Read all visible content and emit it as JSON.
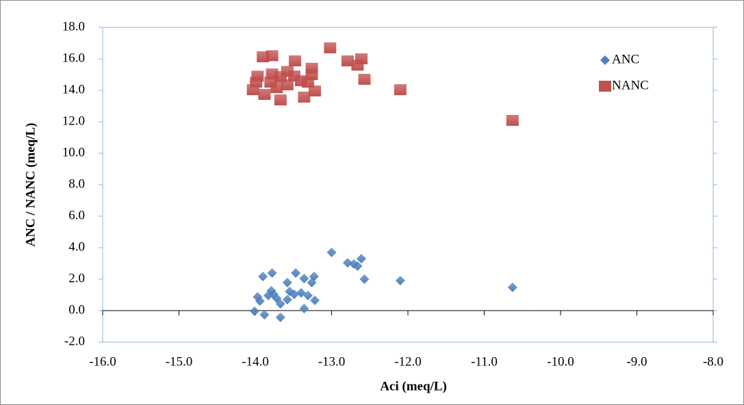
{
  "chart_data": {
    "type": "scatter",
    "xlabel": "Aci (meq/L)",
    "ylabel": "ANC / NANC (meq/L)",
    "xlim": [
      -16,
      -8
    ],
    "ylim": [
      -2,
      18
    ],
    "xticks": [
      {
        "value": -16,
        "label": "-16.0"
      },
      {
        "value": -15,
        "label": "-15.0"
      },
      {
        "value": -14,
        "label": "-14.0"
      },
      {
        "value": -13,
        "label": "-13.0"
      },
      {
        "value": -12,
        "label": "-12.0"
      },
      {
        "value": -11,
        "label": "-11.0"
      },
      {
        "value": -10,
        "label": "-10.0"
      },
      {
        "value": -9,
        "label": "-9.0"
      },
      {
        "value": -8,
        "label": "-8.0"
      }
    ],
    "yticks": [
      {
        "value": -2,
        "label": "-2.0"
      },
      {
        "value": 0,
        "label": "0.0"
      },
      {
        "value": 2,
        "label": "2.0"
      },
      {
        "value": 4,
        "label": "4.0"
      },
      {
        "value": 6,
        "label": "6.0"
      },
      {
        "value": 8,
        "label": "8.0"
      },
      {
        "value": 10,
        "label": "10.0"
      },
      {
        "value": 12,
        "label": "12.0"
      },
      {
        "value": 14,
        "label": "14.0"
      },
      {
        "value": 16,
        "label": "16.0"
      },
      {
        "value": 18,
        "label": "18.0"
      }
    ],
    "legend": "top-right",
    "series": [
      {
        "name": "ANC",
        "color": "#4f81bd",
        "marker": "diamond",
        "x": [
          -13.0,
          -12.79,
          -12.71,
          -12.66,
          -12.61,
          -12.57,
          -12.1,
          -10.63,
          -13.9,
          -13.78,
          -13.47,
          -13.36,
          -13.23,
          -13.26,
          -13.58,
          -13.22,
          -13.31,
          -13.4,
          -13.49,
          -13.58,
          -13.67,
          -13.76,
          -13.83,
          -13.94,
          -13.97,
          -14.01,
          -13.88,
          -13.67,
          -13.36,
          -13.79,
          -13.72,
          -13.55
        ],
        "values": [
          3.7,
          3.04,
          2.96,
          2.83,
          3.3,
          2.0,
          1.91,
          1.48,
          2.17,
          2.39,
          2.39,
          2.04,
          2.17,
          1.78,
          1.78,
          0.65,
          0.96,
          1.13,
          1.04,
          0.7,
          0.43,
          1.04,
          0.96,
          0.61,
          0.87,
          -0.04,
          -0.26,
          -0.43,
          0.13,
          1.26,
          0.78,
          1.22
        ]
      },
      {
        "name": "NANC",
        "color": "#c0504d",
        "marker": "square",
        "x": [
          -13.9,
          -13.78,
          -13.02,
          -12.79,
          -12.66,
          -12.61,
          -13.48,
          -13.26,
          -13.26,
          -13.58,
          -13.78,
          -13.97,
          -13.99,
          -14.03,
          -13.88,
          -13.67,
          -13.36,
          -13.22,
          -13.72,
          -13.58,
          -13.4,
          -13.49,
          -13.31,
          -12.57,
          -12.1,
          -10.63,
          -13.8,
          -13.67
        ],
        "values": [
          16.13,
          16.2,
          16.7,
          15.87,
          15.6,
          16.0,
          15.87,
          15.4,
          15.0,
          15.2,
          15.04,
          14.9,
          14.52,
          14.04,
          13.74,
          13.39,
          13.57,
          13.96,
          14.17,
          14.35,
          14.61,
          14.91,
          14.52,
          14.7,
          14.04,
          12.09,
          14.52,
          14.87
        ]
      }
    ]
  }
}
